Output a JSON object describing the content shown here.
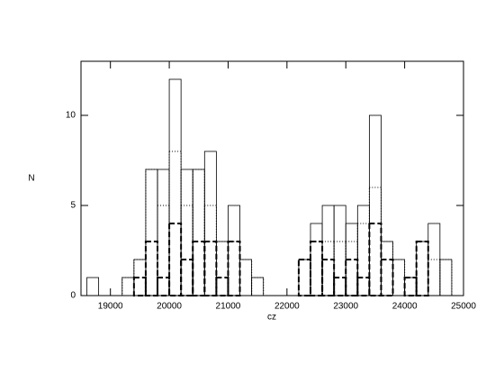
{
  "chart_data": {
    "type": "histogram",
    "xlabel": "cz",
    "ylabel": "N",
    "bins": [
      18600,
      18800,
      19000,
      19200,
      19400,
      19600,
      19800,
      20000,
      20200,
      20400,
      20600,
      20800,
      21000,
      21200,
      21400,
      21600,
      21800,
      22000,
      22200,
      22400,
      22600,
      22800,
      23000,
      23200,
      23400,
      23600,
      23800,
      24000,
      24200,
      24400,
      24600,
      24800
    ],
    "series": [
      {
        "color": "#000000",
        "dash": "solid",
        "values": [
          1,
          0,
          0,
          1,
          2,
          7,
          7,
          12,
          7,
          7,
          8,
          3,
          5,
          2,
          1,
          0,
          0,
          0,
          2,
          4,
          5,
          5,
          4,
          5,
          10,
          3,
          2,
          1,
          3,
          4,
          2
        ]
      },
      {
        "color": "#000000",
        "dash": "dotted",
        "values": [
          0,
          0,
          0,
          1,
          2,
          7,
          5,
          8,
          5,
          7,
          5,
          3,
          3,
          2,
          1,
          0,
          0,
          0,
          2,
          3,
          3,
          3,
          3,
          4,
          6,
          3,
          2,
          1,
          3,
          2,
          2
        ]
      },
      {
        "color": "#000000",
        "dash": "dashed",
        "values": [
          0,
          0,
          0,
          0,
          1,
          3,
          1,
          4,
          2,
          3,
          3,
          1,
          3,
          0,
          0,
          0,
          0,
          0,
          2,
          3,
          2,
          1,
          2,
          1,
          4,
          2,
          0,
          1,
          3,
          0,
          0
        ]
      }
    ],
    "xlim": [
      18500,
      25000
    ],
    "xticks": [
      19000,
      20000,
      21000,
      22000,
      23000,
      24000,
      25000
    ],
    "ylim": [
      0,
      13
    ],
    "yticks": [
      0,
      5,
      10
    ]
  }
}
